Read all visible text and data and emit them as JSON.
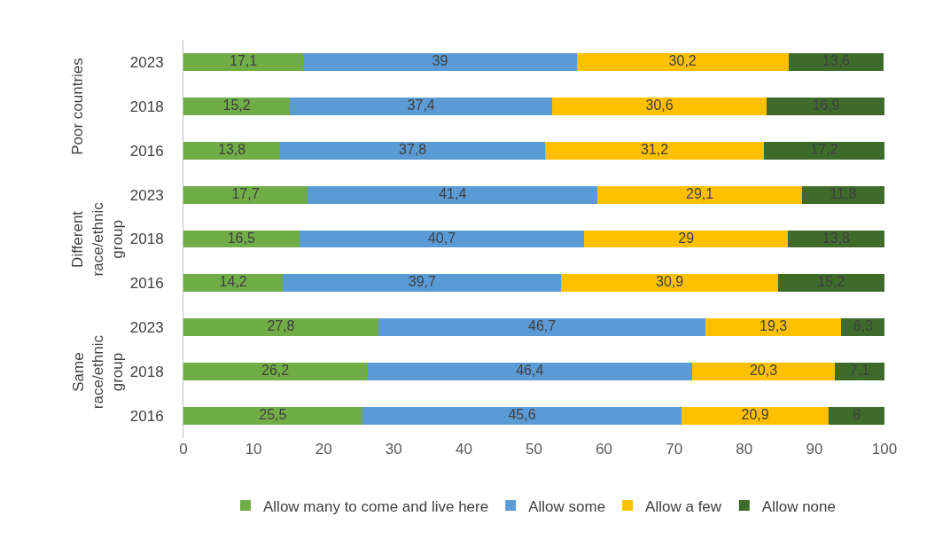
{
  "chart_data": {
    "type": "bar",
    "orientation": "horizontal",
    "stacked": true,
    "categories": [
      "2023",
      "2018",
      "2016",
      "2023",
      "2018",
      "2016",
      "2023",
      "2018",
      "2016"
    ],
    "annotations": [
      "Poor countries",
      "Different race/ethnic group",
      "Same race/ethnic group"
    ],
    "series": [
      {
        "name": "Allow many to come and live here",
        "color": "#70ad47",
        "values": [
          17.1,
          15.2,
          13.8,
          17.7,
          16.5,
          14.2,
          27.8,
          26.2,
          25.5
        ],
        "value_labels": [
          "17,1",
          "15,2",
          "13,8",
          "17,7",
          "16,5",
          "14,2",
          "27,8",
          "26,2",
          "25,5"
        ]
      },
      {
        "name": "Allow some",
        "color": "#5b9bd5",
        "values": [
          39,
          37.4,
          37.8,
          41.4,
          40.7,
          39.7,
          46.7,
          46.4,
          45.6
        ],
        "value_labels": [
          "39",
          "37,4",
          "37,8",
          "41,4",
          "40,7",
          "39,7",
          "46,7",
          "46,4",
          "45,6"
        ]
      },
      {
        "name": "Allow a few",
        "color": "#ffc000",
        "values": [
          30.2,
          30.6,
          31.2,
          29.1,
          29,
          30.9,
          19.3,
          20.3,
          20.9
        ],
        "value_labels": [
          "30,2",
          "30,6",
          "31,2",
          "29,1",
          "29",
          "30,9",
          "19,3",
          "20,3",
          "20,9"
        ]
      },
      {
        "name": "Allow none",
        "color": "#3e6b2a",
        "values": [
          13.6,
          16.9,
          17.2,
          11.8,
          13.8,
          15.2,
          6.3,
          7.1,
          8
        ],
        "value_labels": [
          "13,6",
          "16,9",
          "17,2",
          "11,8",
          "13,8",
          "15,2",
          "6,3",
          "7,1",
          "8"
        ]
      }
    ],
    "xlim": [
      0,
      100
    ],
    "xticks": [
      0,
      10,
      20,
      30,
      40,
      50,
      60,
      70,
      80,
      90,
      100
    ],
    "grid": false,
    "legend": "bottom"
  }
}
